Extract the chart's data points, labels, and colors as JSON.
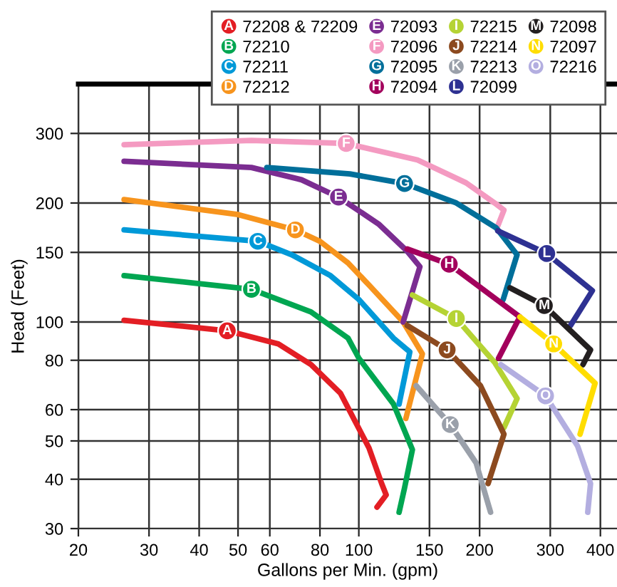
{
  "chart_data": {
    "type": "line",
    "xlabel": "Gallons per Min. (gpm)",
    "ylabel": "Head (Feet)",
    "log": "xy",
    "grid": true,
    "legend": "top right",
    "marker": "none",
    "line_style": "solid",
    "xlim": [
      20,
      440
    ],
    "xticks": [
      20,
      30,
      40,
      50,
      60,
      80,
      100,
      150,
      200,
      300,
      400
    ],
    "ylim": [
      30,
      400
    ],
    "yticks": [
      30,
      40,
      50,
      60,
      80,
      100,
      150,
      200,
      300
    ],
    "series": [
      {
        "name": "72208 & 72209",
        "color": "#e31e24",
        "x": [
          26,
          47,
          63,
          76,
          90,
          106,
          114,
          117,
          111
        ],
        "values": [
          101,
          95,
          88,
          78,
          66,
          48,
          39,
          36.5,
          34
        ]
      },
      {
        "name": "72210",
        "color": "#00a651",
        "x": [
          26,
          54,
          76,
          94,
          100,
          122,
          136,
          130,
          126
        ],
        "values": [
          131,
          121,
          106,
          91,
          81,
          62,
          47.5,
          38,
          33
        ]
      },
      {
        "name": "72211",
        "color": "#0099d8",
        "x": [
          26,
          56,
          68,
          85,
          100,
          122,
          134,
          126
        ],
        "values": [
          171,
          160,
          148,
          131,
          114,
          91,
          84,
          62
        ]
      },
      {
        "name": "72212",
        "color": "#f7941d",
        "x": [
          26,
          50,
          69.5,
          80,
          94,
          106,
          129,
          144,
          131
        ],
        "values": [
          204,
          187,
          171,
          160,
          141,
          124,
          100,
          83,
          57
        ]
      },
      {
        "name": "72093",
        "color": "#7b2d91",
        "x": [
          26,
          54,
          72,
          89,
          112,
          132,
          142,
          129
        ],
        "values": [
          255,
          246,
          229,
          207,
          177,
          151,
          138,
          100
        ]
      },
      {
        "name": "72096",
        "color": "#f49ac1",
        "x": [
          26,
          54,
          93,
          140,
          185,
          218,
          230,
          222
        ],
        "values": [
          281,
          288,
          283,
          257,
          225,
          200,
          192,
          175
        ]
      },
      {
        "name": "72095",
        "color": "#006f9a",
        "x": [
          59,
          95,
          130,
          175,
          220,
          248,
          229
        ],
        "values": [
          246,
          237,
          224,
          200,
          173,
          148,
          114
        ]
      },
      {
        "name": "72094",
        "color": "#a3005c",
        "x": [
          132,
          168,
          252,
          223
        ],
        "values": [
          153,
          140,
          103,
          81
        ]
      },
      {
        "name": "72215",
        "color": "#b5d334",
        "x": [
          136,
          175,
          218,
          248,
          230
        ],
        "values": [
          117,
          102,
          79,
          64,
          54
        ]
      },
      {
        "name": "72214",
        "color": "#8c4a1f",
        "x": [
          132,
          166,
          201,
          230,
          210
        ],
        "values": [
          98,
          85,
          69,
          52,
          39
        ]
      },
      {
        "name": "72213",
        "color": "#9aa0aa",
        "x": [
          139,
          169,
          196,
          213
        ],
        "values": [
          69,
          55,
          44,
          33
        ]
      },
      {
        "name": "72099",
        "color": "#2e3192",
        "x": [
          222,
          294,
          382,
          337
        ],
        "values": [
          170,
          149,
          120,
          98
        ]
      },
      {
        "name": "72098",
        "color": "#231f20",
        "x": [
          238,
          290,
          378,
          362
        ],
        "values": [
          122,
          110,
          85,
          78
        ]
      },
      {
        "name": "72097",
        "color": "#ffdd00",
        "x": [
          252,
          306,
          388,
          356
        ],
        "values": [
          103,
          88,
          70,
          52
        ]
      },
      {
        "name": "72216",
        "color": "#b3aee0",
        "x": [
          226,
          292,
          351,
          378,
          372
        ],
        "values": [
          78,
          65,
          48.5,
          39,
          33
        ]
      }
    ],
    "annotations": [
      {
        "text": "A",
        "x": 47,
        "y": 95
      },
      {
        "text": "B",
        "x": 54,
        "y": 121
      },
      {
        "text": "C",
        "x": 56,
        "y": 160
      },
      {
        "text": "D",
        "x": 69.5,
        "y": 171
      },
      {
        "text": "E",
        "x": 89,
        "y": 207
      },
      {
        "text": "F",
        "x": 93,
        "y": 283
      },
      {
        "text": "G",
        "x": 130,
        "y": 224
      },
      {
        "text": "H",
        "x": 168,
        "y": 140
      },
      {
        "text": "I",
        "x": 175,
        "y": 102
      },
      {
        "text": "J",
        "x": 166,
        "y": 85
      },
      {
        "text": "K",
        "x": 169,
        "y": 55
      },
      {
        "text": "L",
        "x": 294,
        "y": 149
      },
      {
        "text": "M",
        "x": 290,
        "y": 110
      },
      {
        "text": "N",
        "x": 306,
        "y": 88
      },
      {
        "text": "O",
        "x": 292,
        "y": 65
      }
    ]
  }
}
